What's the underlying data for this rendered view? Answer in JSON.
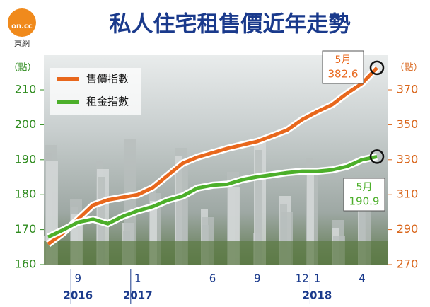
{
  "chart_data": {
    "type": "line",
    "title": "私人住宅租售價近年走勢",
    "logo": "on.cc",
    "source": "東網",
    "ylabel": "（點）",
    "y2label": "（點）",
    "categories": [
      null,
      null,
      "9",
      null,
      null,
      null,
      "1",
      null,
      null,
      null,
      null,
      "6",
      null,
      null,
      "9",
      null,
      null,
      "12",
      "1",
      null,
      null,
      "4",
      null
    ],
    "years": [
      "2016",
      "2017",
      "2018"
    ],
    "ylim": [
      160,
      218
    ],
    "yticks": [
      160,
      170,
      180,
      190,
      200,
      210
    ],
    "y2lim": [
      270,
      386
    ],
    "y2ticks": [
      270,
      290,
      310,
      330,
      350,
      370
    ],
    "series": [
      {
        "name": "售價指數",
        "color": "#e8671c",
        "axis": "y2",
        "end_label": "5月",
        "values": [
          281.7,
          288,
          296,
          304,
          307,
          308.5,
          310,
          314,
          321,
          328,
          331.5,
          334,
          336.5,
          338.5,
          340.5,
          343.7,
          347,
          353,
          357.5,
          361.5,
          368,
          373.7,
          382.6
        ]
      },
      {
        "name": "租金指數",
        "color": "#4caf2a",
        "end_label": "5月",
        "values": [
          167.9,
          169.9,
          172.1,
          173,
          171.7,
          173.8,
          175.4,
          176.6,
          178.4,
          179.6,
          181.9,
          182.7,
          183,
          184.3,
          185.1,
          185.7,
          186.3,
          186.7,
          186.7,
          187.1,
          188.1,
          190,
          190.9
        ]
      }
    ]
  }
}
